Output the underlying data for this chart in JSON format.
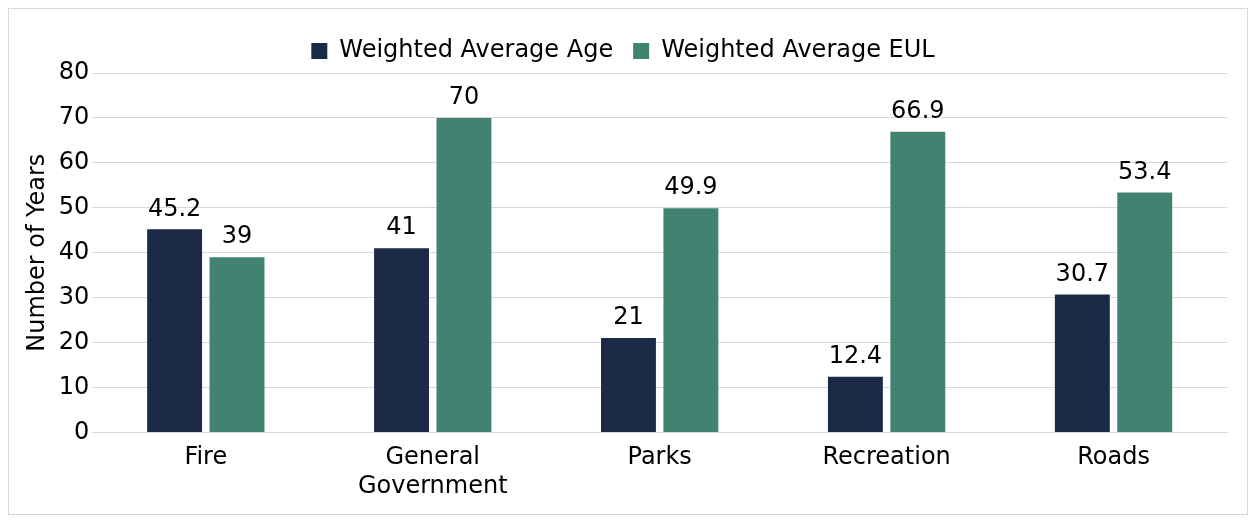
{
  "chart_data": {
    "type": "bar",
    "ylabel": "Number of Years",
    "categories": [
      "Fire",
      "General Government",
      "Parks",
      "Recreation",
      "Roads"
    ],
    "series": [
      {
        "name": "Weighted Average Age",
        "color": "#1b2a47",
        "values": [
          45.2,
          41,
          21,
          12.4,
          30.7
        ]
      },
      {
        "name": "Weighted Average EUL",
        "color": "#428270",
        "values": [
          39,
          70,
          49.9,
          66.9,
          53.4
        ]
      }
    ],
    "ylim": [
      0,
      80
    ],
    "yticks": [
      0,
      10,
      20,
      30,
      40,
      50,
      60,
      70,
      80
    ],
    "grid": "y",
    "legend": "top",
    "data_labels": true
  }
}
